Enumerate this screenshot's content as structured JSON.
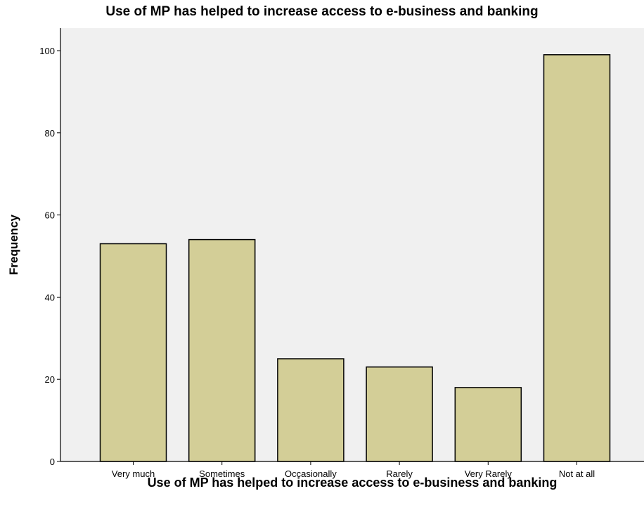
{
  "chart_data": {
    "type": "bar",
    "title": "Use of MP has helped to increase access to e-business and banking",
    "xlabel": "Use of MP has helped to increase access to e-business and banking",
    "ylabel": "Frequency",
    "categories": [
      "Very much",
      "Sometimes",
      "Occasionally",
      "Rarely",
      "Very Rarely",
      "Not at all"
    ],
    "values": [
      53,
      54,
      25,
      23,
      18,
      99
    ],
    "ylim": [
      0,
      100
    ],
    "yticks": [
      0,
      20,
      40,
      60,
      80,
      100
    ],
    "grid": false,
    "colors": {
      "bar_fill": "#D3CE97",
      "bar_stroke": "#000000",
      "plot_background": "#F0F0F0"
    }
  }
}
